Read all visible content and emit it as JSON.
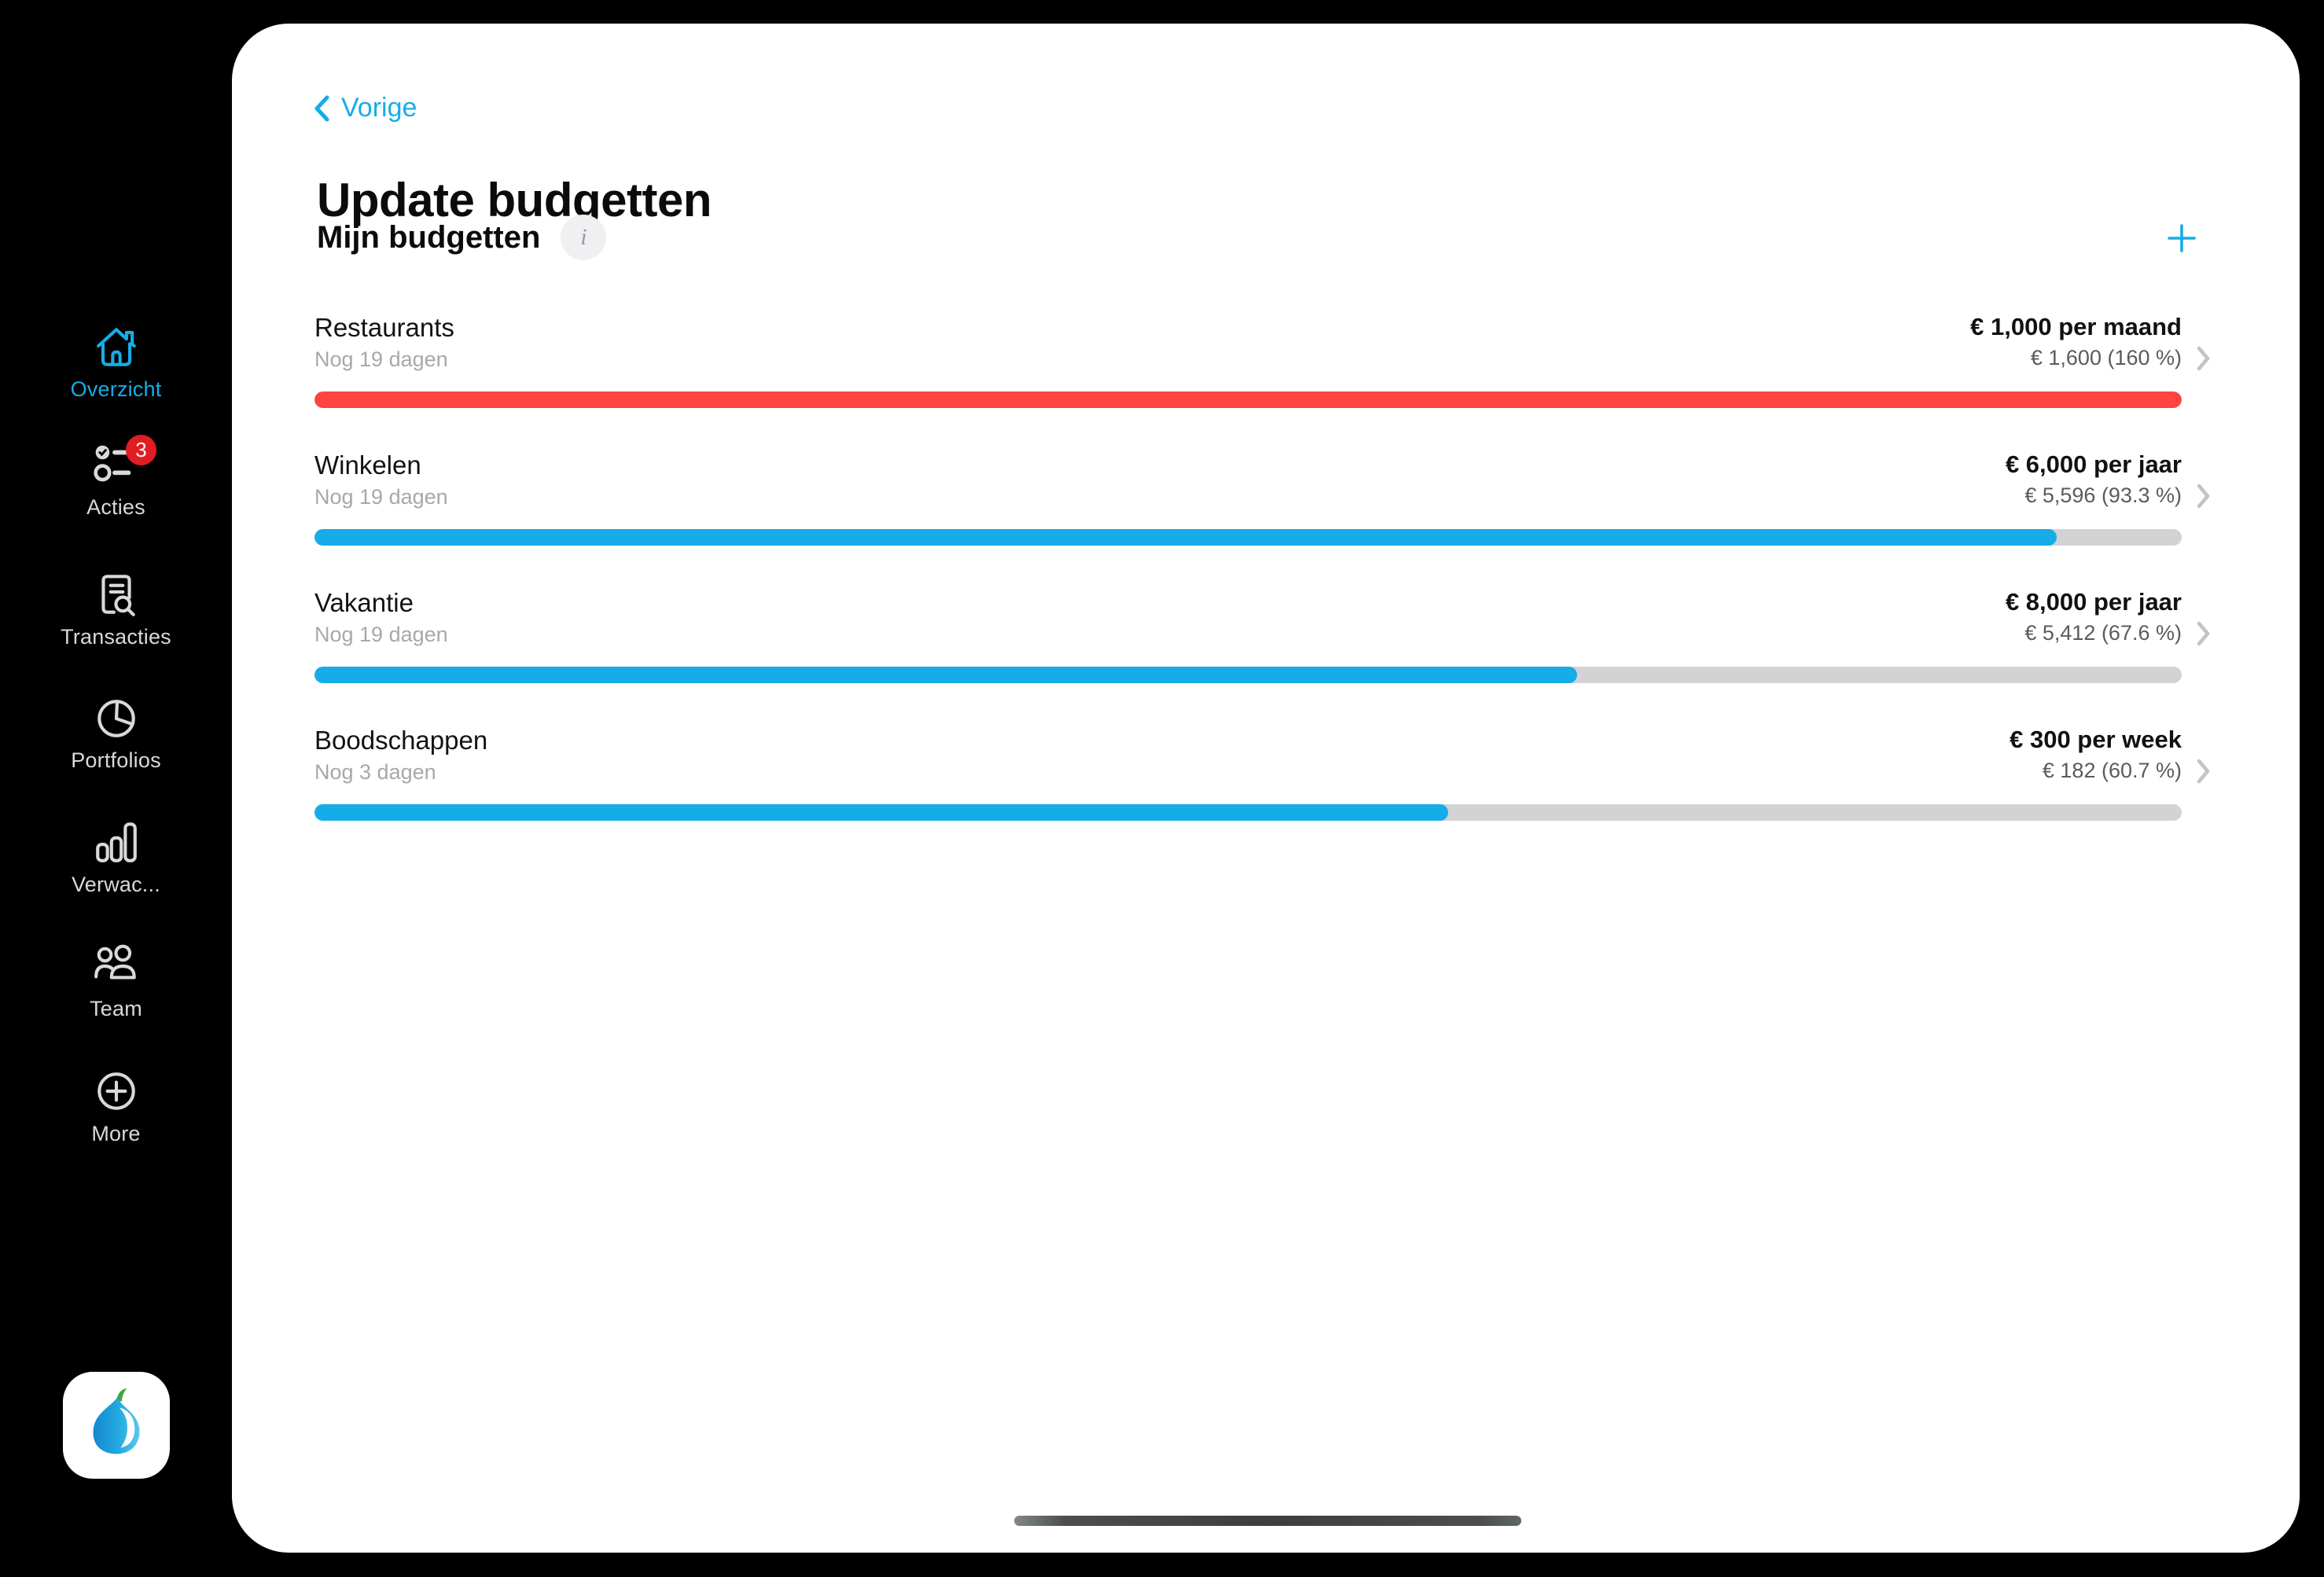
{
  "header": {
    "back_label": "Vorige",
    "title": "Update budgetten"
  },
  "section": {
    "title": "Mijn budgetten",
    "info_glyph": "i"
  },
  "nav": {
    "items": [
      {
        "label": "Overzicht",
        "icon": "home-icon",
        "active": true
      },
      {
        "label": "Acties",
        "icon": "checklist-icon",
        "badge": "3"
      },
      {
        "label": "Transacties",
        "icon": "document-search-icon"
      },
      {
        "label": "Portfolios",
        "icon": "pie-chart-icon"
      },
      {
        "label": "Verwac...",
        "icon": "bar-chart-icon"
      },
      {
        "label": "Team",
        "icon": "people-icon"
      },
      {
        "label": "More",
        "icon": "plus-circle-icon"
      }
    ]
  },
  "budgets": [
    {
      "name": "Restaurants",
      "days_left": "Nog 19 dagen",
      "limit": "€ 1,000 per maand",
      "spent": "€ 1,600 (160 %)",
      "progress_percent": 100,
      "over_budget": true
    },
    {
      "name": "Winkelen",
      "days_left": "Nog 19 dagen",
      "limit": "€ 6,000 per jaar",
      "spent": "€ 5,596 (93.3 %)",
      "progress_percent": 93.3,
      "over_budget": false
    },
    {
      "name": "Vakantie",
      "days_left": "Nog 19 dagen",
      "limit": "€ 8,000 per jaar",
      "spent": "€ 5,412 (67.6 %)",
      "progress_percent": 67.6,
      "over_budget": false
    },
    {
      "name": "Boodschappen",
      "days_left": "Nog 3 dagen",
      "limit": "€ 300 per week",
      "spent": "€ 182 (60.7 %)",
      "progress_percent": 60.7,
      "over_budget": false
    }
  ],
  "colors": {
    "accent_blue": "#16ACE8",
    "over_red": "#FB4540",
    "track_gray": "#D3D3D5",
    "badge_red": "#E11D24"
  }
}
